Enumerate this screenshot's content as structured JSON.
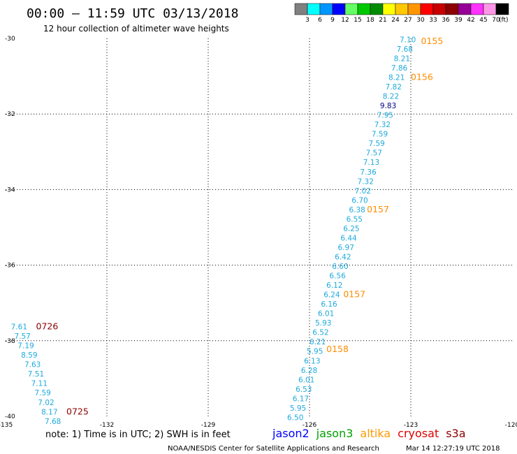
{
  "header": {
    "title": "00:00 – 11:59 UTC 03/13/2018",
    "subtitle": "12 hour collection of altimeter wave heights"
  },
  "color_scale": {
    "labels": [
      "3",
      "6",
      "9",
      "12",
      "15",
      "18",
      "21",
      "24",
      "27",
      "30",
      "33",
      "36",
      "39",
      "42",
      "45",
      "70"
    ],
    "unit": "(ft)",
    "colors": [
      "#808080",
      "#00ffff",
      "#0096ff",
      "#0000ff",
      "#64ff64",
      "#00c800",
      "#008c00",
      "#ffff00",
      "#ffc800",
      "#ff9600",
      "#ff0000",
      "#c80000",
      "#8c0000",
      "#960096",
      "#ff32ff",
      "#ff96e6",
      "#000000"
    ]
  },
  "chart_data": {
    "type": "scatter",
    "title": "00:00 – 11:59 UTC 03/13/2018",
    "subtitle": "12 hour collection of altimeter wave heights",
    "xlim": [
      -135,
      -120
    ],
    "ylim": [
      -40,
      -30
    ],
    "x_ticks": [
      "-135",
      "-132",
      "-129",
      "-126",
      "-123",
      "-120"
    ],
    "y_ticks": [
      "-30",
      "-32",
      "-34",
      "-36",
      "-38",
      "-40"
    ],
    "grid": true,
    "series": [
      {
        "name": "altika",
        "color": "#ff8c00",
        "points": [
          {
            "lon": -123.09,
            "lat": -30.1,
            "swh": "7.10"
          },
          {
            "lon": -123.18,
            "lat": -30.35,
            "swh": "7.68"
          },
          {
            "lon": -123.26,
            "lat": -30.6,
            "swh": "8.21"
          },
          {
            "lon": -123.34,
            "lat": -30.85,
            "swh": "7.86"
          },
          {
            "lon": -123.42,
            "lat": -31.1,
            "swh": "8.21"
          },
          {
            "lon": -123.51,
            "lat": -31.35,
            "swh": "7.82"
          },
          {
            "lon": -123.59,
            "lat": -31.6,
            "swh": "8.22"
          },
          {
            "lon": -123.67,
            "lat": -31.85,
            "swh": "9.83",
            "color": "#000080"
          },
          {
            "lon": -123.76,
            "lat": -32.1,
            "swh": "7.95"
          },
          {
            "lon": -123.84,
            "lat": -32.35,
            "swh": "7.32"
          },
          {
            "lon": -123.92,
            "lat": -32.6,
            "swh": "7.59"
          },
          {
            "lon": -124.01,
            "lat": -32.85,
            "swh": "7.59"
          },
          {
            "lon": -124.09,
            "lat": -33.1,
            "swh": "7.57"
          },
          {
            "lon": -124.17,
            "lat": -33.35,
            "swh": "7.13"
          },
          {
            "lon": -124.26,
            "lat": -33.6,
            "swh": "7.36"
          },
          {
            "lon": -124.34,
            "lat": -33.85,
            "swh": "7.32"
          },
          {
            "lon": -124.42,
            "lat": -34.1,
            "swh": "7.02"
          },
          {
            "lon": -124.51,
            "lat": -34.35,
            "swh": "6.70"
          },
          {
            "lon": -124.59,
            "lat": -34.6,
            "swh": "6.38"
          },
          {
            "lon": -124.67,
            "lat": -34.85,
            "swh": "6.55"
          },
          {
            "lon": -124.76,
            "lat": -35.1,
            "swh": "6.25"
          },
          {
            "lon": -124.84,
            "lat": -35.35,
            "swh": "6.44"
          },
          {
            "lon": -124.92,
            "lat": -35.6,
            "swh": "6.97"
          },
          {
            "lon": -125.01,
            "lat": -35.85,
            "swh": "6.42"
          },
          {
            "lon": -125.09,
            "lat": -36.1,
            "swh": "6.60"
          },
          {
            "lon": -125.17,
            "lat": -36.35,
            "swh": "6.56"
          },
          {
            "lon": -125.26,
            "lat": -36.6,
            "swh": "6.12"
          },
          {
            "lon": -125.34,
            "lat": -36.85,
            "swh": "6.24"
          },
          {
            "lon": -125.42,
            "lat": -37.1,
            "swh": "6.16"
          },
          {
            "lon": -125.51,
            "lat": -37.35,
            "swh": "6.01"
          },
          {
            "lon": -125.59,
            "lat": -37.6,
            "swh": "5.93"
          },
          {
            "lon": -125.67,
            "lat": -37.85,
            "swh": "6.52"
          },
          {
            "lon": -125.76,
            "lat": -38.1,
            "swh": "6.21"
          },
          {
            "lon": -125.84,
            "lat": -38.35,
            "swh": "5.95"
          },
          {
            "lon": -125.92,
            "lat": -38.6,
            "swh": "6.13"
          },
          {
            "lon": -126.01,
            "lat": -38.85,
            "swh": "6.28"
          },
          {
            "lon": -126.09,
            "lat": -39.1,
            "swh": "6.01"
          },
          {
            "lon": -126.17,
            "lat": -39.35,
            "swh": "6.53"
          },
          {
            "lon": -126.26,
            "lat": -39.6,
            "swh": "6.17"
          },
          {
            "lon": -126.34,
            "lat": -39.85,
            "swh": "5.95"
          },
          {
            "lon": -126.42,
            "lat": -40.1,
            "swh": "6.50"
          }
        ],
        "time_labels": [
          {
            "lon": -122.7,
            "lat": -30.15,
            "text": "0155"
          },
          {
            "lon": -123.0,
            "lat": -31.1,
            "text": "0156"
          },
          {
            "lon": -124.3,
            "lat": -34.6,
            "text": "0157"
          },
          {
            "lon": -125.0,
            "lat": -36.85,
            "text": "0157"
          },
          {
            "lon": -125.5,
            "lat": -38.3,
            "text": "0158"
          }
        ]
      },
      {
        "name": "cryosat",
        "color": "#8b0000",
        "points": [
          {
            "lon": -134.6,
            "lat": -37.7,
            "swh": "7.61"
          },
          {
            "lon": -134.5,
            "lat": -37.95,
            "swh": "7.57"
          },
          {
            "lon": -134.4,
            "lat": -38.2,
            "swh": "7.19"
          },
          {
            "lon": -134.3,
            "lat": -38.45,
            "swh": "8.59"
          },
          {
            "lon": -134.2,
            "lat": -38.7,
            "swh": "7.63"
          },
          {
            "lon": -134.1,
            "lat": -38.95,
            "swh": "7.51"
          },
          {
            "lon": -134.0,
            "lat": -39.2,
            "swh": "7.11"
          },
          {
            "lon": -133.9,
            "lat": -39.45,
            "swh": "7.59"
          },
          {
            "lon": -133.8,
            "lat": -39.7,
            "swh": "7.02"
          },
          {
            "lon": -133.7,
            "lat": -39.95,
            "swh": "8.17"
          },
          {
            "lon": -133.6,
            "lat": -40.2,
            "swh": "7.68"
          }
        ],
        "time_labels": [
          {
            "lon": -134.1,
            "lat": -37.7,
            "text": "0726"
          },
          {
            "lon": -133.2,
            "lat": -39.95,
            "text": "0725"
          }
        ]
      }
    ],
    "swh_text_color": "#1eaadc"
  },
  "legend": {
    "note": "note: 1) Time is in UTC; 2) SWH is in feet",
    "satellites": [
      {
        "name": "jason2",
        "color": "#0000ff"
      },
      {
        "name": "jason3",
        "color": "#00a000"
      },
      {
        "name": "altika",
        "color": "#ff9a00"
      },
      {
        "name": "cryosat",
        "color": "#e00000"
      },
      {
        "name": "s3a",
        "color": "#8b0000"
      }
    ]
  },
  "footer": {
    "source": "NOAA/NESDIS Center for Satellite Applications and Research",
    "timestamp": "Mar 14 12:27:19 UTC 2018"
  }
}
